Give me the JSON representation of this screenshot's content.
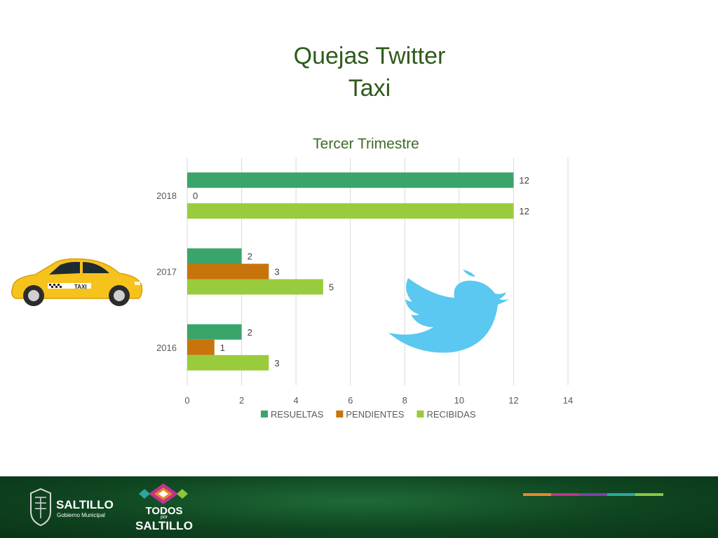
{
  "header": {
    "title_line1": "Quejas Twitter",
    "title_line2": "Taxi"
  },
  "chart_data": {
    "type": "bar",
    "orientation": "horizontal",
    "title": "Tercer Trimestre",
    "categories": [
      "2018",
      "2017",
      "2016"
    ],
    "series": [
      {
        "name": "RESUELTAS",
        "values": [
          12,
          2,
          2
        ],
        "color": "#3aa56a"
      },
      {
        "name": "PENDIENTES",
        "values": [
          0,
          3,
          1
        ],
        "color": "#c8740c"
      },
      {
        "name": "RECIBIDAS",
        "values": [
          12,
          5,
          3
        ],
        "color": "#99cc3d"
      }
    ],
    "xlim": [
      0,
      14
    ],
    "xticks": [
      0,
      2,
      4,
      6,
      8,
      10,
      12,
      14
    ],
    "grid": "vertical",
    "legend": "bottom",
    "data_labels": true
  },
  "images": {
    "left": "taxi-car-icon",
    "right": "twitter-bird-icon"
  },
  "footer": {
    "saltillo_logo": "SALTILLO",
    "saltillo_sub": "Gobierno Municipal",
    "todos_line1": "TODOS",
    "todos_line2": "por",
    "todos_line3": "SALTILLO",
    "stripe_colors": [
      "#e8872a",
      "#c0338a",
      "#7f3fa8",
      "#2aa7a0",
      "#8cc63f"
    ]
  }
}
